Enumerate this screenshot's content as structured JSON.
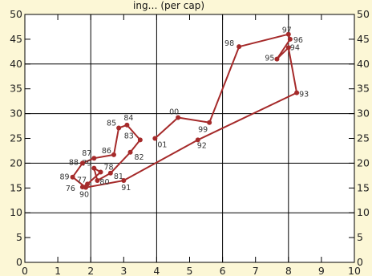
{
  "chart_data": {
    "type": "line",
    "title": "",
    "title_partial": "ing… (per cap)",
    "xlabel": "",
    "ylabel": "",
    "xlim": [
      0,
      10
    ],
    "ylim": [
      0,
      50
    ],
    "x_ticks": [
      0,
      1,
      2,
      3,
      4,
      5,
      6,
      7,
      8,
      9,
      10
    ],
    "y_ticks": [
      0,
      5,
      10,
      15,
      20,
      25,
      30,
      35,
      40,
      45,
      50
    ],
    "y_axis_labels_both_sides": true,
    "grid": true,
    "legend": "none",
    "line_color": "#a52a2a",
    "background_color": "#fcf7d6",
    "series": [
      {
        "points": [
          {
            "label": "76",
            "x": 1.75,
            "y": 15.2
          },
          {
            "label": "77",
            "x": 1.9,
            "y": 15.8
          },
          {
            "label": "78",
            "x": 2.3,
            "y": 18.2
          },
          {
            "label": "79",
            "x": 2.1,
            "y": 19.0
          },
          {
            "label": "80",
            "x": 2.2,
            "y": 16.5
          },
          {
            "label": "81",
            "x": 2.6,
            "y": 18.0
          },
          {
            "label": "82",
            "x": 3.2,
            "y": 22.2
          },
          {
            "label": "83",
            "x": 3.5,
            "y": 24.7
          },
          {
            "label": "84",
            "x": 3.1,
            "y": 27.7
          },
          {
            "label": "85",
            "x": 2.85,
            "y": 27.1
          },
          {
            "label": "86",
            "x": 2.7,
            "y": 21.7
          },
          {
            "label": "87",
            "x": 2.1,
            "y": 21.0
          },
          {
            "label": "88",
            "x": 1.75,
            "y": 20.0
          },
          {
            "label": "89",
            "x": 1.45,
            "y": 17.2
          },
          {
            "label": "90",
            "x": 1.85,
            "y": 15.1
          },
          {
            "label": "91",
            "x": 3.0,
            "y": 16.5
          },
          {
            "label": "92",
            "x": 5.25,
            "y": 24.7
          },
          {
            "label": "93",
            "x": 8.25,
            "y": 34.2
          },
          {
            "label": "94",
            "x": 8.0,
            "y": 43.3
          },
          {
            "label": "95",
            "x": 7.65,
            "y": 41.0
          },
          {
            "label": "96",
            "x": 8.05,
            "y": 45.0
          },
          {
            "label": "97",
            "x": 8.0,
            "y": 46.0
          },
          {
            "label": "98",
            "x": 6.5,
            "y": 43.5
          },
          {
            "label": "99",
            "x": 5.6,
            "y": 28.2
          },
          {
            "label": "00",
            "x": 4.65,
            "y": 29.2
          },
          {
            "label": "01",
            "x": 3.95,
            "y": 25.0
          }
        ]
      }
    ]
  }
}
